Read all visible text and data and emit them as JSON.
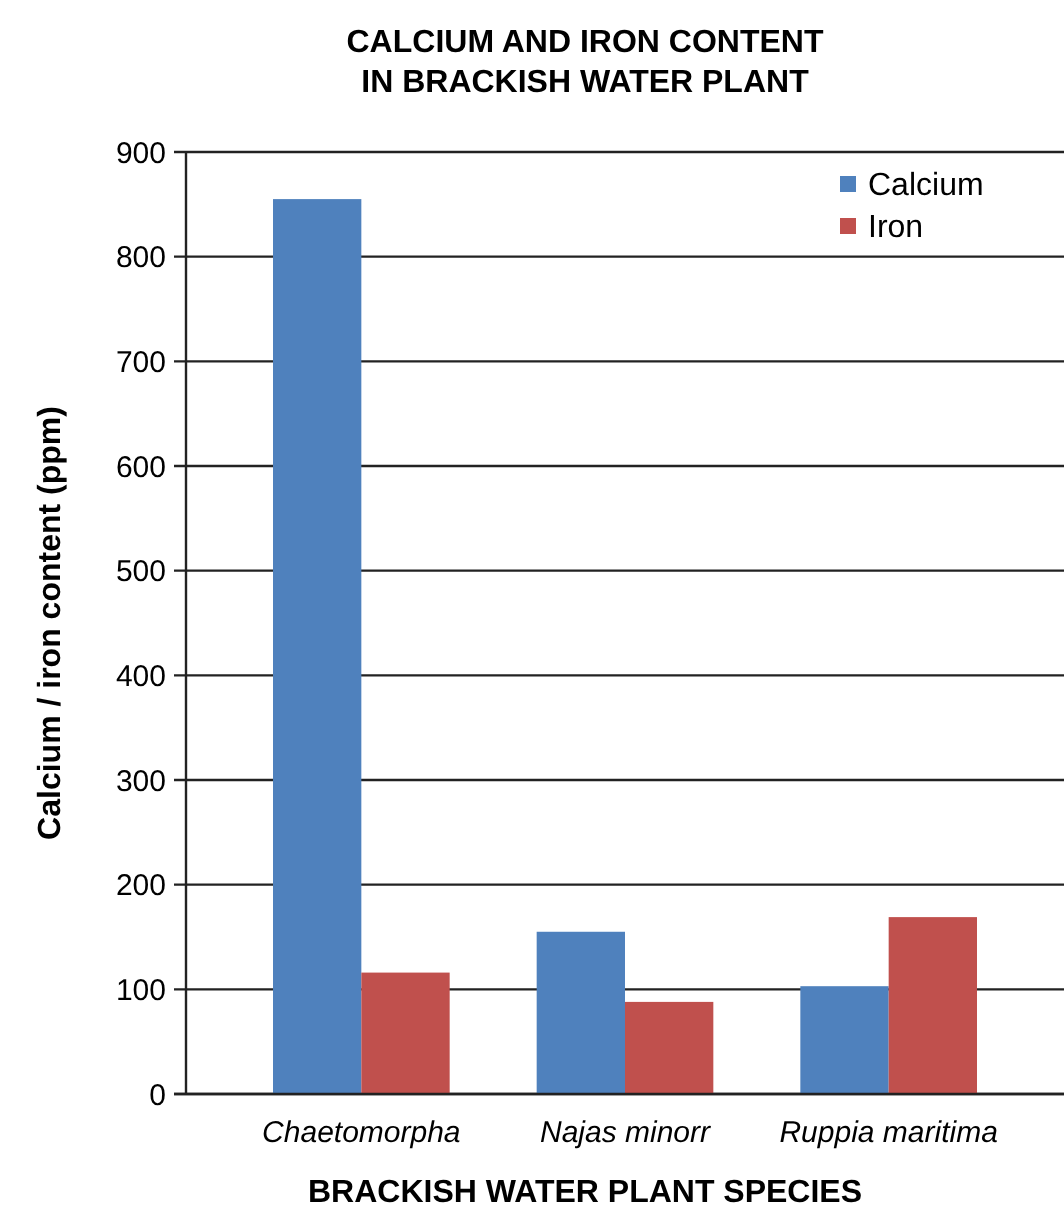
{
  "chart_data": {
    "type": "bar",
    "title": "CALCIUM AND IRON CONTENT\nIN BRACKISH WATER PLANT",
    "xlabel": "BRACKISH WATER PLANT SPECIES",
    "ylabel": "Calcium / iron content (ppm)",
    "categories": [
      "Chaetomorpha",
      "Najas minorr",
      "Ruppia maritima"
    ],
    "series": [
      {
        "name": "Calcium",
        "color": "#4f81bd",
        "values": [
          855,
          155,
          103
        ]
      },
      {
        "name": "Iron",
        "color": "#c0504d",
        "values": [
          116,
          88,
          169
        ]
      }
    ],
    "ylim": [
      0,
      900
    ],
    "yticks": [
      0,
      100,
      200,
      300,
      400,
      500,
      600,
      700,
      800,
      900
    ],
    "grid": "y",
    "legend": "top right"
  }
}
